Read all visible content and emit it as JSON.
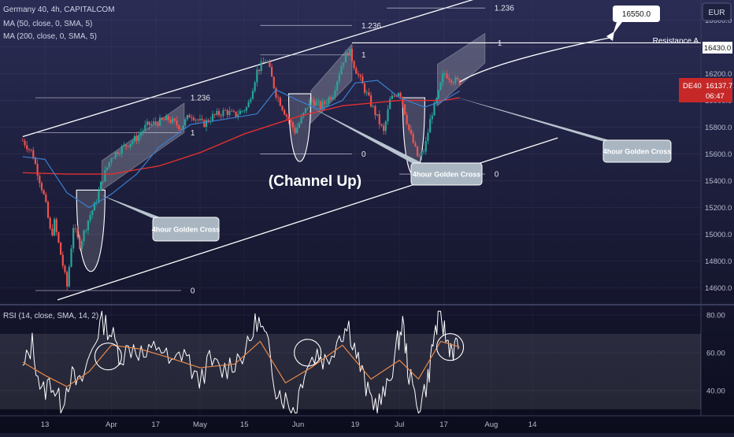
{
  "header": {
    "symbol_line": "Germany 40, 4h, CAPITALCOM",
    "ma50_line": "MA (50, close, 0, SMA, 5)",
    "ma200_line": "MA (200, close, 0, SMA, 5)",
    "rsi_line": "RSI (14, close, SMA, 14, 2)",
    "currency": "EUR"
  },
  "colors": {
    "background_top": "#2a2c54",
    "background_bottom": "#0b0c1c",
    "candle_up": "#26a69a",
    "candle_down": "#ef5350",
    "ma50": "#3b7fd0",
    "ma200": "#e03030",
    "rsi_line": "#ffffff",
    "rsi_ma": "#e8894a",
    "price_badge": "#c62828",
    "channel": "#ffffff"
  },
  "chart_data": {
    "type": "candlestick",
    "title": "Germany 40, 4h, CAPITALCOM",
    "price_axis": {
      "ticks": [
        16600.0,
        16400.0,
        16200.0,
        16000.0,
        15800.0,
        15600.0,
        15400.0,
        15200.0,
        15000.0,
        14800.0,
        14600.0
      ],
      "tick_labels": [
        "16600.0",
        "16400.0",
        "16200.0",
        "16000.0",
        "15800.0",
        "15600.0",
        "15400.0",
        "15200.0",
        "15000.0",
        "14800.0",
        "14600.0"
      ],
      "ylim": [
        14480,
        16750
      ]
    },
    "time_axis": {
      "labels": [
        "13",
        "Apr",
        "17",
        "May",
        "15",
        "Jun",
        "19",
        "Jul",
        "17",
        "Aug",
        "14"
      ],
      "label_dates": [
        "2023-03-13",
        "2023-04-03",
        "2023-04-17",
        "2023-05-01",
        "2023-05-15",
        "2023-06-01",
        "2023-06-19",
        "2023-07-03",
        "2023-07-17",
        "2023-08-01",
        "2023-08-14"
      ]
    },
    "current_price": {
      "symbol": "DE40",
      "value": "16137.7",
      "countdown": "06:47"
    },
    "close_path": [
      {
        "date": "2023-03-06",
        "close": 15700
      },
      {
        "date": "2023-03-09",
        "close": 15610
      },
      {
        "date": "2023-03-13",
        "close": 15260
      },
      {
        "date": "2023-03-15",
        "close": 14980
      },
      {
        "date": "2023-03-16",
        "close": 15090
      },
      {
        "date": "2023-03-20",
        "close": 14610
      },
      {
        "date": "2023-03-22",
        "close": 15060
      },
      {
        "date": "2023-03-24",
        "close": 14920
      },
      {
        "date": "2023-03-27",
        "close": 15130
      },
      {
        "date": "2023-03-29",
        "close": 15230
      },
      {
        "date": "2023-03-31",
        "close": 15400
      },
      {
        "date": "2023-04-03",
        "close": 15580
      },
      {
        "date": "2023-04-06",
        "close": 15640
      },
      {
        "date": "2023-04-11",
        "close": 15720
      },
      {
        "date": "2023-04-14",
        "close": 15810
      },
      {
        "date": "2023-04-18",
        "close": 15840
      },
      {
        "date": "2023-04-21",
        "close": 15860
      },
      {
        "date": "2023-04-25",
        "close": 15800
      },
      {
        "date": "2023-04-28",
        "close": 15900
      },
      {
        "date": "2023-05-02",
        "close": 15820
      },
      {
        "date": "2023-05-05",
        "close": 15880
      },
      {
        "date": "2023-05-09",
        "close": 15920
      },
      {
        "date": "2023-05-12",
        "close": 15890
      },
      {
        "date": "2023-05-16",
        "close": 15950
      },
      {
        "date": "2023-05-19",
        "close": 16220
      },
      {
        "date": "2023-05-22",
        "close": 16310
      },
      {
        "date": "2023-05-25",
        "close": 16050
      },
      {
        "date": "2023-05-28",
        "close": 15900
      },
      {
        "date": "2023-05-31",
        "close": 15770
      },
      {
        "date": "2023-06-02",
        "close": 15860
      },
      {
        "date": "2023-06-05",
        "close": 16010
      },
      {
        "date": "2023-06-08",
        "close": 15950
      },
      {
        "date": "2023-06-12",
        "close": 16050
      },
      {
        "date": "2023-06-15",
        "close": 16290
      },
      {
        "date": "2023-06-17",
        "close": 16380
      },
      {
        "date": "2023-06-19",
        "close": 16240
      },
      {
        "date": "2023-06-22",
        "close": 16080
      },
      {
        "date": "2023-06-26",
        "close": 15870
      },
      {
        "date": "2023-06-28",
        "close": 15760
      },
      {
        "date": "2023-06-30",
        "close": 16000
      },
      {
        "date": "2023-07-03",
        "close": 16080
      },
      {
        "date": "2023-07-06",
        "close": 15780
      },
      {
        "date": "2023-07-09",
        "close": 15560
      },
      {
        "date": "2023-07-11",
        "close": 15640
      },
      {
        "date": "2023-07-13",
        "close": 15890
      },
      {
        "date": "2023-07-15",
        "close": 16020
      },
      {
        "date": "2023-07-17",
        "close": 16210
      },
      {
        "date": "2023-07-20",
        "close": 16150
      },
      {
        "date": "2023-07-22",
        "close": 16137.7
      }
    ],
    "ma50_path": [
      {
        "date": "2023-03-06",
        "value": 15580
      },
      {
        "date": "2023-03-13",
        "value": 15560
      },
      {
        "date": "2023-03-20",
        "value": 15310
      },
      {
        "date": "2023-03-27",
        "value": 15200
      },
      {
        "date": "2023-04-03",
        "value": 15300
      },
      {
        "date": "2023-04-11",
        "value": 15450
      },
      {
        "date": "2023-04-18",
        "value": 15650
      },
      {
        "date": "2023-04-28",
        "value": 15820
      },
      {
        "date": "2023-05-09",
        "value": 15860
      },
      {
        "date": "2023-05-19",
        "value": 15900
      },
      {
        "date": "2023-05-25",
        "value": 16080
      },
      {
        "date": "2023-06-01",
        "value": 16000
      },
      {
        "date": "2023-06-08",
        "value": 15930
      },
      {
        "date": "2023-06-15",
        "value": 16000
      },
      {
        "date": "2023-06-19",
        "value": 16130
      },
      {
        "date": "2023-06-26",
        "value": 16150
      },
      {
        "date": "2023-07-03",
        "value": 16020
      },
      {
        "date": "2023-07-11",
        "value": 15950
      },
      {
        "date": "2023-07-17",
        "value": 16000
      },
      {
        "date": "2023-07-22",
        "value": 16070
      }
    ],
    "ma200_path": [
      {
        "date": "2023-03-06",
        "value": 15460
      },
      {
        "date": "2023-03-20",
        "value": 15450
      },
      {
        "date": "2023-04-03",
        "value": 15450
      },
      {
        "date": "2023-04-18",
        "value": 15510
      },
      {
        "date": "2023-05-01",
        "value": 15610
      },
      {
        "date": "2023-05-15",
        "value": 15750
      },
      {
        "date": "2023-06-01",
        "value": 15880
      },
      {
        "date": "2023-06-15",
        "value": 15960
      },
      {
        "date": "2023-07-03",
        "value": 16000
      },
      {
        "date": "2023-07-17",
        "value": 16000
      },
      {
        "date": "2023-07-22",
        "value": 16020
      }
    ],
    "channel": {
      "name": "Channel Up",
      "label": "(Channel Up)",
      "upper": [
        {
          "date": "2023-03-06",
          "value": 15730
        },
        {
          "date": "2023-07-30",
          "value": 16780
        }
      ],
      "lower": [
        {
          "date": "2023-03-17",
          "value": 14510
        },
        {
          "date": "2023-08-22",
          "value": 15720
        }
      ]
    },
    "fib_groups": [
      {
        "levels": [
          {
            "label": "1.236",
            "value": 16020,
            "from": "2023-03-10",
            "to": "2023-04-25"
          },
          {
            "label": "1",
            "value": 15760,
            "from": "2023-03-10",
            "to": "2023-04-25"
          },
          {
            "label": "0",
            "value": 14580,
            "from": "2023-03-10",
            "to": "2023-04-25"
          }
        ]
      },
      {
        "levels": [
          {
            "label": "1.236",
            "value": 16560,
            "from": "2023-05-20",
            "to": "2023-06-18"
          },
          {
            "label": "1",
            "value": 16340,
            "from": "2023-05-20",
            "to": "2023-06-18"
          },
          {
            "label": "0",
            "value": 15600,
            "from": "2023-05-20",
            "to": "2023-06-18"
          }
        ]
      },
      {
        "levels": [
          {
            "label": "1.236",
            "value": 16690,
            "from": "2023-06-29",
            "to": "2023-07-30"
          },
          {
            "label": "1",
            "value": 16430,
            "from": "2023-07-10",
            "to": "2023-07-31"
          },
          {
            "label": "0",
            "value": 15450,
            "from": "2023-07-03",
            "to": "2023-07-30"
          }
        ]
      }
    ],
    "resistance": {
      "label": "Resistance A",
      "value": 16430.0,
      "tag": "16430.0"
    },
    "target": {
      "label": "16550.0",
      "value": 16550.0
    },
    "golden_crosses": [
      {
        "label": "4hour Golden Cross",
        "date": "2023-03-30",
        "value": 15300
      },
      {
        "label": "4hour Golden Cross",
        "date": "2023-06-05",
        "value": 15950
      },
      {
        "label": "4hour Golden Cross",
        "date": "2023-07-20",
        "value": 16030
      }
    ],
    "bottom_arcs": [
      {
        "from": "2023-03-23",
        "to": "2023-04-01",
        "top": 15330,
        "bottom": 14730
      },
      {
        "from": "2023-05-29",
        "to": "2023-06-05",
        "top": 16050,
        "bottom": 15550
      },
      {
        "from": "2023-07-04",
        "to": "2023-07-11",
        "top": 16020,
        "bottom": 15450
      }
    ],
    "rsi": {
      "title": "RSI (14, close, SMA, 14, 2)",
      "ticks": [
        80.0,
        60.0,
        40.0
      ],
      "tick_labels": [
        "80.00",
        "60.00",
        "40.00"
      ],
      "band": [
        30,
        70
      ],
      "ylim": [
        27,
        85
      ],
      "rsi_path": [
        {
          "date": "2023-03-06",
          "value": 50
        },
        {
          "date": "2023-03-09",
          "value": 65
        },
        {
          "date": "2023-03-12",
          "value": 38
        },
        {
          "date": "2023-03-15",
          "value": 45
        },
        {
          "date": "2023-03-18",
          "value": 32
        },
        {
          "date": "2023-03-21",
          "value": 48
        },
        {
          "date": "2023-03-24",
          "value": 42
        },
        {
          "date": "2023-03-28",
          "value": 62
        },
        {
          "date": "2023-03-31",
          "value": 78
        },
        {
          "date": "2023-04-03",
          "value": 70
        },
        {
          "date": "2023-04-06",
          "value": 58
        },
        {
          "date": "2023-04-10",
          "value": 64
        },
        {
          "date": "2023-04-14",
          "value": 57
        },
        {
          "date": "2023-04-18",
          "value": 65
        },
        {
          "date": "2023-04-22",
          "value": 52
        },
        {
          "date": "2023-04-26",
          "value": 62
        },
        {
          "date": "2023-04-30",
          "value": 44
        },
        {
          "date": "2023-05-04",
          "value": 55
        },
        {
          "date": "2023-05-08",
          "value": 50
        },
        {
          "date": "2023-05-12",
          "value": 56
        },
        {
          "date": "2023-05-16",
          "value": 62
        },
        {
          "date": "2023-05-19",
          "value": 78
        },
        {
          "date": "2023-05-22",
          "value": 66
        },
        {
          "date": "2023-05-25",
          "value": 42
        },
        {
          "date": "2023-05-28",
          "value": 35
        },
        {
          "date": "2023-05-31",
          "value": 29
        },
        {
          "date": "2023-06-03",
          "value": 52
        },
        {
          "date": "2023-06-07",
          "value": 60
        },
        {
          "date": "2023-06-10",
          "value": 55
        },
        {
          "date": "2023-06-14",
          "value": 70
        },
        {
          "date": "2023-06-17",
          "value": 74
        },
        {
          "date": "2023-06-20",
          "value": 56
        },
        {
          "date": "2023-06-23",
          "value": 38
        },
        {
          "date": "2023-06-26",
          "value": 32
        },
        {
          "date": "2023-06-29",
          "value": 40
        },
        {
          "date": "2023-07-02",
          "value": 62
        },
        {
          "date": "2023-07-04",
          "value": 76
        },
        {
          "date": "2023-07-06",
          "value": 48
        },
        {
          "date": "2023-07-09",
          "value": 30
        },
        {
          "date": "2023-07-12",
          "value": 46
        },
        {
          "date": "2023-07-14",
          "value": 70
        },
        {
          "date": "2023-07-16",
          "value": 80
        },
        {
          "date": "2023-07-18",
          "value": 66
        },
        {
          "date": "2023-07-20",
          "value": 62
        },
        {
          "date": "2023-07-22",
          "value": 64
        }
      ],
      "rsi_ma_path": [
        {
          "date": "2023-03-06",
          "value": 55
        },
        {
          "date": "2023-03-13",
          "value": 48
        },
        {
          "date": "2023-03-20",
          "value": 42
        },
        {
          "date": "2023-03-27",
          "value": 50
        },
        {
          "date": "2023-04-03",
          "value": 64
        },
        {
          "date": "2023-04-12",
          "value": 62
        },
        {
          "date": "2023-04-20",
          "value": 58
        },
        {
          "date": "2023-05-01",
          "value": 52
        },
        {
          "date": "2023-05-12",
          "value": 54
        },
        {
          "date": "2023-05-20",
          "value": 66
        },
        {
          "date": "2023-05-28",
          "value": 44
        },
        {
          "date": "2023-06-05",
          "value": 52
        },
        {
          "date": "2023-06-15",
          "value": 64
        },
        {
          "date": "2023-06-24",
          "value": 46
        },
        {
          "date": "2023-07-03",
          "value": 56
        },
        {
          "date": "2023-07-09",
          "value": 46
        },
        {
          "date": "2023-07-16",
          "value": 66
        },
        {
          "date": "2023-07-22",
          "value": 63
        }
      ],
      "circles": [
        {
          "date": "2023-04-02",
          "value": 58
        },
        {
          "date": "2023-06-04",
          "value": 60
        },
        {
          "date": "2023-07-19",
          "value": 63
        }
      ]
    }
  }
}
